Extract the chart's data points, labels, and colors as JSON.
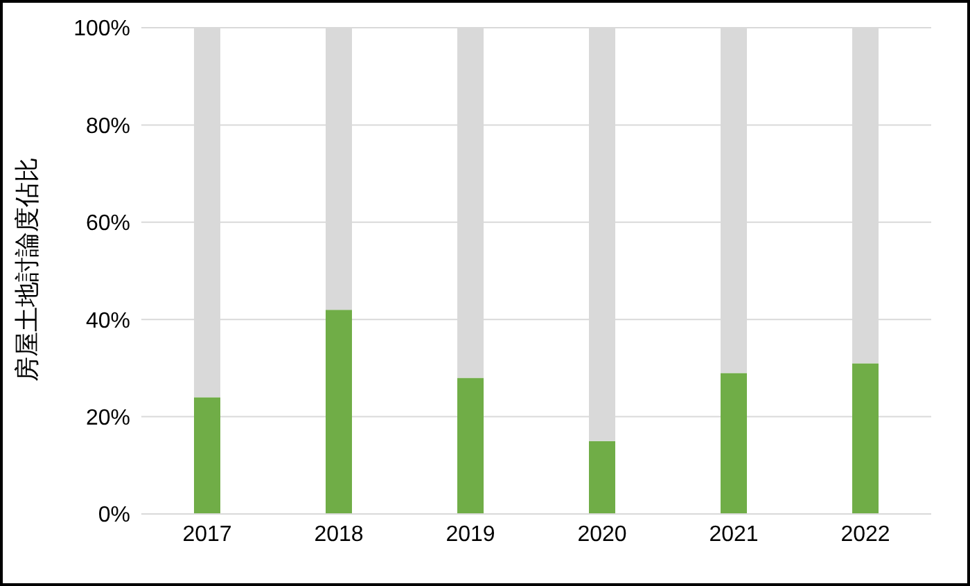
{
  "chart_data": {
    "type": "bar",
    "stacked": true,
    "ylabel": "房屋土地討論度佔比",
    "categories": [
      "2017",
      "2018",
      "2019",
      "2020",
      "2021",
      "2022"
    ],
    "series": [
      {
        "color": "#70ad47",
        "values": [
          24,
          42,
          28,
          15,
          29,
          31
        ]
      },
      {
        "color": "#d9d9d9",
        "values": [
          76,
          58,
          72,
          85,
          71,
          69
        ]
      }
    ],
    "ylim": [
      0,
      100
    ],
    "yticks": [
      {
        "value": 0,
        "label": "0%"
      },
      {
        "value": 20,
        "label": "20%"
      },
      {
        "value": 40,
        "label": "40%"
      },
      {
        "value": 60,
        "label": "60%"
      },
      {
        "value": 80,
        "label": "80%"
      },
      {
        "value": 100,
        "label": "100%"
      }
    ],
    "grid": "y",
    "legend": false
  }
}
